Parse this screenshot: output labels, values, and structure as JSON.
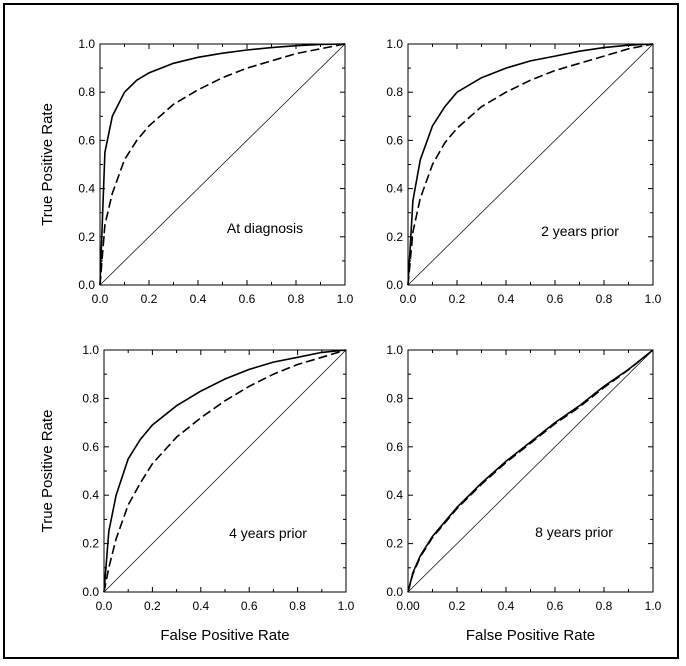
{
  "figure": {
    "y_axis_title": "True Positive Rate",
    "x_axis_title": "False Positive Rate"
  },
  "chart_data": [
    {
      "type": "line",
      "label": "At diagnosis",
      "xlim": [
        0,
        1
      ],
      "ylim": [
        0,
        1
      ],
      "xticks": [
        "0.0",
        "0.2",
        "0.4",
        "0.6",
        "0.8",
        "1.0"
      ],
      "yticks": [
        "0.0",
        "0.2",
        "0.4",
        "0.6",
        "0.8",
        "1.0"
      ],
      "xlabel": "",
      "ylabel": "True Positive Rate",
      "series": [
        {
          "style": "solid",
          "x": [
            0,
            0.02,
            0.05,
            0.1,
            0.15,
            0.2,
            0.3,
            0.4,
            0.5,
            0.6,
            0.7,
            0.8,
            0.9,
            1.0
          ],
          "y": [
            0,
            0.55,
            0.7,
            0.8,
            0.85,
            0.88,
            0.92,
            0.945,
            0.962,
            0.975,
            0.985,
            0.993,
            0.998,
            1.0
          ]
        },
        {
          "style": "dashed",
          "x": [
            0,
            0.02,
            0.05,
            0.1,
            0.15,
            0.2,
            0.3,
            0.4,
            0.5,
            0.6,
            0.7,
            0.8,
            0.9,
            1.0
          ],
          "y": [
            0,
            0.25,
            0.38,
            0.52,
            0.6,
            0.66,
            0.75,
            0.81,
            0.86,
            0.9,
            0.93,
            0.96,
            0.98,
            1.0
          ]
        },
        {
          "style": "reference",
          "x": [
            0,
            1
          ],
          "y": [
            0,
            1
          ]
        }
      ]
    },
    {
      "type": "line",
      "label": "2 years prior",
      "xlim": [
        0,
        1
      ],
      "ylim": [
        0,
        1
      ],
      "xticks": [
        "0.0",
        "0.2",
        "0.4",
        "0.6",
        "0.8",
        "1.0"
      ],
      "yticks": [
        "0.0",
        "0.2",
        "0.4",
        "0.6",
        "0.8",
        "1.0"
      ],
      "xlabel": "",
      "ylabel": "",
      "series": [
        {
          "style": "solid",
          "x": [
            0,
            0.02,
            0.05,
            0.1,
            0.15,
            0.2,
            0.3,
            0.4,
            0.5,
            0.6,
            0.7,
            0.8,
            0.9,
            1.0
          ],
          "y": [
            0,
            0.35,
            0.52,
            0.66,
            0.74,
            0.8,
            0.86,
            0.9,
            0.93,
            0.95,
            0.97,
            0.985,
            0.995,
            1.0
          ]
        },
        {
          "style": "dashed",
          "x": [
            0,
            0.02,
            0.05,
            0.1,
            0.15,
            0.2,
            0.3,
            0.4,
            0.5,
            0.6,
            0.7,
            0.8,
            0.9,
            1.0
          ],
          "y": [
            0,
            0.22,
            0.36,
            0.5,
            0.59,
            0.65,
            0.74,
            0.8,
            0.85,
            0.89,
            0.92,
            0.95,
            0.98,
            1.0
          ]
        },
        {
          "style": "reference",
          "x": [
            0,
            1
          ],
          "y": [
            0,
            1
          ]
        }
      ]
    },
    {
      "type": "line",
      "label": "4 years prior",
      "xlim": [
        0,
        1
      ],
      "ylim": [
        0,
        1
      ],
      "xticks": [
        "0.0",
        "0.2",
        "0.4",
        "0.6",
        "0.8",
        "1.0"
      ],
      "yticks": [
        "0.0",
        "0.2",
        "0.4",
        "0.6",
        "0.8",
        "1.0"
      ],
      "xlabel": "False Positive Rate",
      "ylabel": "True Positive Rate",
      "series": [
        {
          "style": "solid",
          "x": [
            0,
            0.02,
            0.05,
            0.1,
            0.15,
            0.2,
            0.3,
            0.4,
            0.5,
            0.6,
            0.7,
            0.8,
            0.9,
            1.0
          ],
          "y": [
            0,
            0.25,
            0.4,
            0.55,
            0.63,
            0.69,
            0.77,
            0.83,
            0.88,
            0.92,
            0.95,
            0.97,
            0.99,
            1.0
          ]
        },
        {
          "style": "dashed",
          "x": [
            0,
            0.02,
            0.05,
            0.1,
            0.15,
            0.2,
            0.3,
            0.4,
            0.5,
            0.6,
            0.7,
            0.8,
            0.9,
            1.0
          ],
          "y": [
            0,
            0.1,
            0.22,
            0.36,
            0.45,
            0.53,
            0.64,
            0.72,
            0.79,
            0.85,
            0.9,
            0.94,
            0.97,
            1.0
          ]
        },
        {
          "style": "reference",
          "x": [
            0,
            1
          ],
          "y": [
            0,
            1
          ]
        }
      ]
    },
    {
      "type": "line",
      "label": "8 years prior",
      "xlim": [
        0,
        1
      ],
      "ylim": [
        0,
        1
      ],
      "xticks": [
        "0.00",
        "0.2",
        "0.4",
        "0.6",
        "0.8",
        "1.0"
      ],
      "yticks": [
        "0.0",
        "0.2",
        "0.4",
        "0.6",
        "0.8",
        "1.0"
      ],
      "xlabel": "False Positive Rate",
      "ylabel": "",
      "series": [
        {
          "style": "solid",
          "x": [
            0,
            0.02,
            0.05,
            0.1,
            0.15,
            0.2,
            0.3,
            0.4,
            0.5,
            0.6,
            0.7,
            0.8,
            0.9,
            1.0
          ],
          "y": [
            0,
            0.08,
            0.15,
            0.23,
            0.29,
            0.35,
            0.45,
            0.54,
            0.62,
            0.7,
            0.77,
            0.85,
            0.92,
            1.0
          ]
        },
        {
          "style": "dashed",
          "x": [
            0,
            0.02,
            0.05,
            0.1,
            0.15,
            0.2,
            0.3,
            0.4,
            0.5,
            0.6,
            0.7,
            0.8,
            0.9,
            1.0
          ],
          "y": [
            0,
            0.075,
            0.145,
            0.225,
            0.285,
            0.345,
            0.445,
            0.535,
            0.615,
            0.695,
            0.765,
            0.845,
            0.918,
            1.0
          ]
        },
        {
          "style": "reference",
          "x": [
            0,
            1
          ],
          "y": [
            0,
            1
          ]
        }
      ]
    }
  ]
}
